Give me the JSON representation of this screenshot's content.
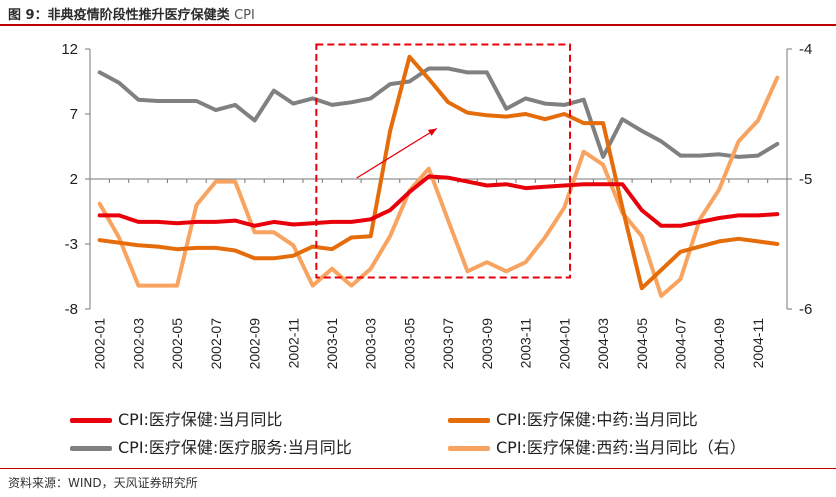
{
  "figure": {
    "title": "图 9：非典疫情阶段性推升医疗保健类",
    "title_suffix": "CPI",
    "source": "资料来源：WIND，天风证券研究所"
  },
  "chart_data": {
    "type": "line",
    "x": [
      "2002-01",
      "2002-02",
      "2002-03",
      "2002-04",
      "2002-05",
      "2002-06",
      "2002-07",
      "2002-08",
      "2002-09",
      "2002-10",
      "2002-11",
      "2002-12",
      "2003-01",
      "2003-02",
      "2003-03",
      "2003-04",
      "2003-05",
      "2003-06",
      "2003-07",
      "2003-08",
      "2003-09",
      "2003-10",
      "2003-11",
      "2003-12",
      "2004-01",
      "2004-02",
      "2004-03",
      "2004-04",
      "2004-05",
      "2004-06",
      "2004-07",
      "2004-08",
      "2004-09",
      "2004-10",
      "2004-11",
      "2004-12"
    ],
    "x_tick_labels": [
      "2002-01",
      "2002-03",
      "2002-05",
      "2002-07",
      "2002-09",
      "2002-11",
      "2003-01",
      "2003-03",
      "2003-05",
      "2003-07",
      "2003-09",
      "2003-11",
      "2004-01",
      "2004-03",
      "2004-05",
      "2004-07",
      "2004-09",
      "2004-11"
    ],
    "y_left": {
      "lim": [
        -8,
        12
      ],
      "ticks": [
        "12",
        "7",
        "2",
        "-3",
        "-8"
      ]
    },
    "y_right": {
      "lim": [
        -6,
        -4
      ],
      "ticks": [
        "-4",
        "-5",
        "-6"
      ]
    },
    "series": [
      {
        "name": "CPI:医疗保健:当月同比",
        "color": "#e8000b",
        "axis": "left",
        "values": [
          -0.8,
          -0.8,
          -1.3,
          -1.3,
          -1.4,
          -1.3,
          -1.3,
          -1.2,
          -1.6,
          -1.3,
          -1.5,
          -1.4,
          -1.3,
          -1.3,
          -1.1,
          -0.4,
          1.0,
          2.2,
          2.1,
          1.8,
          1.5,
          1.6,
          1.3,
          1.4,
          1.5,
          1.6,
          1.6,
          1.6,
          -0.4,
          -1.6,
          -1.6,
          -1.3,
          -1.0,
          -0.8,
          -0.8,
          -0.7
        ]
      },
      {
        "name": "CPI:医疗保健:中药:当月同比",
        "color": "#e46c0a",
        "axis": "left",
        "values": [
          -2.7,
          -2.9,
          -3.1,
          -3.2,
          -3.4,
          -3.3,
          -3.3,
          -3.5,
          -4.1,
          -4.1,
          -3.9,
          -3.2,
          -3.4,
          -2.5,
          -2.4,
          5.7,
          11.4,
          9.7,
          7.9,
          7.1,
          6.9,
          6.8,
          7.0,
          6.6,
          7.0,
          6.3,
          6.3,
          -0.2,
          -6.4,
          -5.0,
          -3.6,
          -3.2,
          -2.8,
          -2.6,
          -2.8,
          -3.0
        ]
      },
      {
        "name": "CPI:医疗保健:医疗服务:当月同比",
        "color": "#808080",
        "axis": "left",
        "values": [
          10.2,
          9.4,
          8.1,
          8.0,
          8.0,
          8.0,
          7.3,
          7.7,
          6.5,
          8.8,
          7.8,
          8.2,
          7.7,
          7.9,
          8.2,
          9.3,
          9.5,
          10.5,
          10.5,
          10.2,
          10.2,
          7.4,
          8.2,
          7.8,
          7.7,
          8.1,
          3.7,
          6.6,
          5.7,
          4.9,
          3.8,
          3.8,
          3.9,
          3.7,
          3.8,
          4.7
        ]
      },
      {
        "name": "CPI:医疗保健:西药:当月同比（右）",
        "color": "#f8a460",
        "axis": "right",
        "values": [
          -5.19,
          -5.45,
          -5.82,
          -5.82,
          -5.82,
          -5.2,
          -5.02,
          -5.02,
          -5.41,
          -5.41,
          -5.51,
          -5.82,
          -5.69,
          -5.82,
          -5.69,
          -5.44,
          -5.09,
          -4.92,
          -5.32,
          -5.71,
          -5.64,
          -5.71,
          -5.64,
          -5.45,
          -5.22,
          -4.79,
          -4.89,
          -5.26,
          -5.44,
          -5.9,
          -5.77,
          -5.31,
          -5.08,
          -4.71,
          -4.55,
          -4.22
        ]
      }
    ],
    "annotations": [
      {
        "kind": "dashed-box",
        "color": "#e8000b",
        "from_x": "2003-01",
        "to_x": "2004-01",
        "y_range": [
          -6.5,
          12.5
        ]
      },
      {
        "kind": "arrow",
        "color": "#e8000b",
        "from": [
          "2003-03",
          3.0
        ],
        "to": [
          "2003-06",
          6.5
        ]
      }
    ],
    "grid": false,
    "legend_position": "bottom"
  }
}
